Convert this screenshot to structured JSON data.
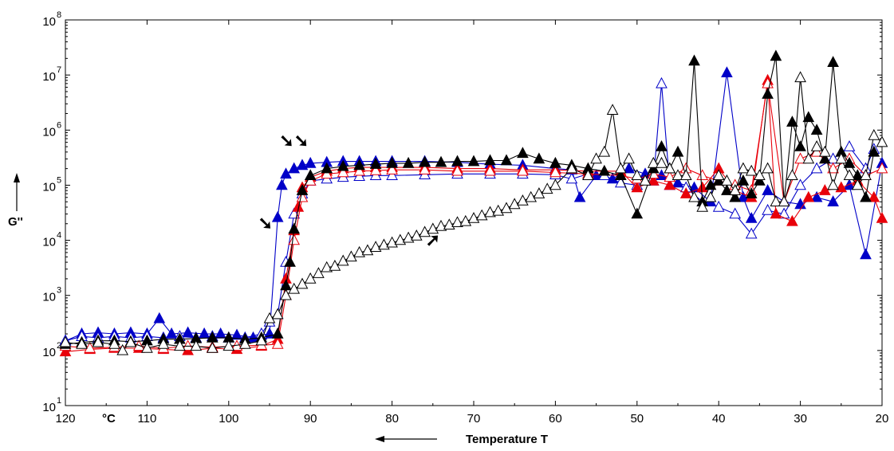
{
  "chart_data": {
    "type": "scatter",
    "xlabel": "Temperature T",
    "xunit": "°C",
    "ylabel": "G''",
    "x_reversed": true,
    "xlim": [
      120,
      20
    ],
    "ylim": [
      10,
      100000000
    ],
    "y_scale": "log",
    "grid": false,
    "legend": "none",
    "x_ticks": [
      "120",
      "110",
      "100",
      "90",
      "80",
      "70",
      "60",
      "50",
      "40",
      "30",
      "20"
    ],
    "y_ticks": [
      {
        "base": "10",
        "exp": "1"
      },
      {
        "base": "10",
        "exp": "2"
      },
      {
        "base": "10",
        "exp": "3"
      },
      {
        "base": "10",
        "exp": "4"
      },
      {
        "base": "10",
        "exp": "5"
      },
      {
        "base": "10",
        "exp": "6"
      },
      {
        "base": "10",
        "exp": "7"
      },
      {
        "base": "10",
        "exp": "8"
      }
    ],
    "series": [
      {
        "color": "#0000c8",
        "marker": "filled-triangle",
        "x": [
          120,
          118,
          116,
          114,
          112,
          110,
          108.5,
          107,
          105,
          103,
          101,
          99,
          97,
          96,
          95,
          94,
          93.5,
          93,
          92,
          91,
          90,
          88,
          86,
          84,
          82,
          80,
          76,
          72,
          68,
          64,
          60,
          58,
          57,
          55,
          53,
          51,
          49,
          47,
          45,
          43,
          41,
          39,
          37,
          36,
          34,
          32,
          30,
          28,
          26,
          24,
          22,
          20
        ],
        "y": [
          150,
          200,
          210,
          200,
          210,
          200,
          380,
          200,
          210,
          200,
          200,
          190,
          170,
          190,
          200,
          26000,
          100000,
          160000,
          200000,
          230000,
          250000,
          260000,
          270000,
          270000,
          270000,
          270000,
          270000,
          260000,
          240000,
          230000,
          200000,
          190000,
          60000,
          150000,
          130000,
          200000,
          160000,
          150000,
          110000,
          90000,
          50000,
          11000000,
          60000,
          25000,
          80000,
          50000,
          45000,
          60000,
          50000,
          100000,
          5500,
          250000
        ]
      },
      {
        "color": "#0000c8",
        "marker": "open-triangle",
        "x": [
          120,
          118,
          116,
          114,
          112,
          110,
          108,
          106,
          104,
          102,
          100,
          98,
          96,
          95,
          94,
          93,
          92,
          91,
          90,
          88,
          86,
          84,
          82,
          80,
          76,
          72,
          68,
          64,
          60,
          58,
          56,
          54,
          52,
          50,
          48,
          47,
          46,
          44,
          42,
          40,
          38,
          36,
          34,
          32,
          30,
          28,
          26,
          24,
          22,
          21
        ],
        "y": [
          150,
          180,
          170,
          180,
          170,
          180,
          170,
          180,
          170,
          180,
          170,
          170,
          200,
          330,
          450,
          4000,
          30000,
          70000,
          120000,
          130000,
          140000,
          145000,
          150000,
          150000,
          155000,
          160000,
          160000,
          160000,
          155000,
          130000,
          160000,
          150000,
          110000,
          100000,
          120000,
          7000000,
          100000,
          90000,
          50000,
          40000,
          30000,
          13000,
          35000,
          30000,
          100000,
          200000,
          300000,
          500000,
          200000,
          450000
        ]
      },
      {
        "color": "#e8000a",
        "marker": "filled-triangle",
        "x": [
          120,
          117,
          114,
          111,
          108,
          105,
          102,
          99,
          96,
          94,
          93,
          92,
          91.5,
          91,
          90,
          88,
          86,
          84,
          82,
          80,
          76,
          72,
          68,
          64,
          60,
          56,
          52,
          50,
          48,
          46,
          44,
          42,
          40,
          38,
          36,
          34,
          33,
          31,
          29,
          27,
          25,
          23,
          21,
          20
        ],
        "y": [
          95,
          105,
          110,
          110,
          105,
          100,
          110,
          105,
          120,
          160,
          2000,
          15000,
          40000,
          90000,
          140000,
          180000,
          200000,
          210000,
          210000,
          210000,
          210000,
          200000,
          200000,
          190000,
          190000,
          180000,
          180000,
          90000,
          120000,
          100000,
          70000,
          90000,
          200000,
          80000,
          60000,
          8000000,
          30000,
          22000,
          60000,
          80000,
          90000,
          120000,
          60000,
          25000
        ]
      },
      {
        "color": "#e8000a",
        "marker": "open-triangle",
        "x": [
          120,
          117,
          114,
          111,
          108,
          105,
          102,
          99,
          96,
          94,
          93,
          92,
          91,
          90,
          88,
          86,
          84,
          82,
          80,
          76,
          72,
          68,
          64,
          60,
          56,
          52,
          50,
          48,
          46,
          44,
          42,
          40,
          38,
          36,
          34,
          32,
          30,
          28,
          26,
          24,
          22,
          20
        ],
        "y": [
          120,
          110,
          115,
          120,
          110,
          120,
          115,
          120,
          125,
          130,
          1000,
          10000,
          60000,
          120000,
          160000,
          170000,
          180000,
          185000,
          190000,
          190000,
          180000,
          180000,
          180000,
          170000,
          160000,
          150000,
          130000,
          160000,
          140000,
          200000,
          150000,
          120000,
          100000,
          80000,
          7000000,
          50000,
          300000,
          400000,
          200000,
          300000,
          150000,
          200000
        ]
      },
      {
        "color": "#000000",
        "marker": "filled-triangle",
        "x": [
          120,
          118,
          116,
          114,
          112,
          110,
          108,
          106,
          104,
          102,
          100,
          98,
          96,
          94,
          93,
          92.5,
          92,
          91,
          90,
          88,
          86,
          84,
          82,
          80,
          78,
          76,
          74,
          72,
          70,
          68,
          66,
          64,
          62,
          60,
          58,
          56,
          54,
          52,
          50,
          48,
          47,
          46,
          45,
          44,
          43,
          42,
          41,
          40,
          39,
          38,
          37,
          36,
          35,
          34,
          33,
          32,
          31,
          30,
          29,
          28,
          27,
          26,
          25,
          24,
          23,
          22,
          21
        ],
        "y": [
          130,
          140,
          150,
          150,
          145,
          150,
          160,
          160,
          165,
          170,
          170,
          160,
          170,
          200,
          1500,
          4000,
          16000,
          80000,
          150000,
          200000,
          220000,
          230000,
          240000,
          250000,
          250000,
          260000,
          260000,
          270000,
          270000,
          280000,
          280000,
          380000,
          300000,
          250000,
          230000,
          200000,
          180000,
          150000,
          30000,
          200000,
          500000,
          200000,
          400000,
          150000,
          18000000,
          50000,
          100000,
          120000,
          80000,
          60000,
          120000,
          70000,
          120000,
          4500000,
          22000000,
          50000,
          1400000,
          500000,
          1700000,
          1000000,
          300000,
          17000000,
          400000,
          250000,
          150000,
          60000,
          400000
        ]
      },
      {
        "color": "#000000",
        "marker": "open-triangle",
        "x": [
          120,
          118,
          116,
          114,
          113,
          112,
          110,
          108,
          106,
          104,
          102,
          100,
          98,
          96,
          95,
          94,
          93,
          92,
          91,
          90,
          89,
          88,
          87,
          86,
          85,
          84,
          83,
          82,
          81,
          80,
          79,
          78,
          77,
          76,
          75,
          74,
          73,
          72,
          71,
          70,
          69,
          68,
          67,
          66,
          65,
          64,
          63,
          62,
          61,
          60,
          58,
          56,
          55,
          54,
          53,
          52,
          51,
          50,
          49,
          48,
          47,
          46,
          45,
          44,
          43,
          42,
          41,
          40,
          39,
          38,
          37,
          36,
          35,
          34,
          33,
          32,
          31,
          30,
          29,
          28,
          27,
          26,
          25,
          24,
          23,
          22,
          21,
          20
        ],
        "y": [
          140,
          130,
          140,
          130,
          100,
          140,
          110,
          130,
          120,
          120,
          110,
          120,
          130,
          150,
          380,
          450,
          1000,
          1300,
          1600,
          2000,
          2500,
          3200,
          3400,
          4200,
          5000,
          6000,
          6500,
          7500,
          8200,
          9000,
          10000,
          11000,
          12000,
          14000,
          16000,
          18000,
          19000,
          21000,
          22000,
          25000,
          28000,
          32000,
          34000,
          38000,
          45000,
          52000,
          60000,
          70000,
          85000,
          100000,
          200000,
          150000,
          300000,
          400000,
          2300000,
          200000,
          300000,
          150000,
          120000,
          250000,
          250000,
          200000,
          150000,
          150000,
          60000,
          40000,
          60000,
          150000,
          120000,
          80000,
          200000,
          180000,
          150000,
          200000,
          50000,
          50000,
          150000,
          9000000,
          300000,
          500000,
          400000,
          100000,
          300000,
          150000,
          100000,
          150000,
          800000,
          600000
        ]
      }
    ],
    "annotations": [
      {
        "glyph": "➘",
        "x": 95.5,
        "y": 16000
      },
      {
        "glyph": "➘➘",
        "x": 92,
        "y": 500000
      },
      {
        "glyph": "➚",
        "x": 75,
        "y": 8000
      }
    ]
  }
}
